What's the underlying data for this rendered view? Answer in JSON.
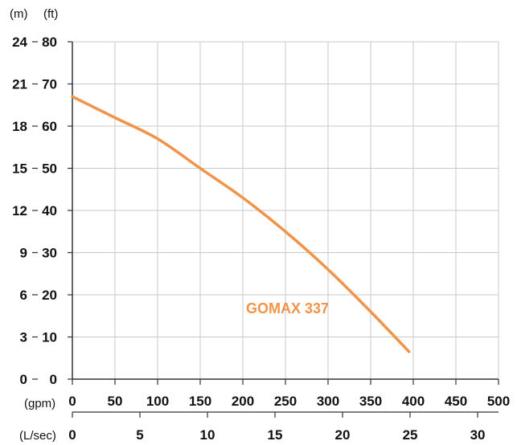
{
  "chart_data": {
    "type": "line",
    "title": "",
    "grid": true,
    "colors": {
      "curve": "#f0944a",
      "grid": "#c8c8c8",
      "axis": "#333333",
      "text": "#111111"
    },
    "left_axes": {
      "meters": {
        "unit_label": "(m)",
        "ticks": [
          "0",
          "3",
          "6",
          "9",
          "12",
          "15",
          "18",
          "21",
          "24"
        ],
        "range": [
          0,
          24
        ]
      },
      "feet": {
        "unit_label": "(ft)",
        "ticks": [
          "0",
          "10",
          "20",
          "30",
          "40",
          "50",
          "60",
          "70",
          "80"
        ],
        "range": [
          0,
          80
        ]
      }
    },
    "bottom_axes": {
      "gpm": {
        "unit_label": "(gpm)",
        "ticks": [
          "0",
          "50",
          "100",
          "150",
          "200",
          "250",
          "300",
          "350",
          "400",
          "450",
          "500"
        ],
        "range": [
          0,
          500
        ]
      },
      "lsec": {
        "unit_label": "(L/sec)",
        "ticks": [
          "0",
          "5",
          "10",
          "15",
          "20",
          "25",
          "30"
        ]
      }
    },
    "series": [
      {
        "name": "GOMAX 337",
        "x_unit": "gpm",
        "y_unit": "ft",
        "x": [
          0,
          50,
          100,
          150,
          200,
          250,
          300,
          350,
          395
        ],
        "y": [
          67,
          62,
          57,
          50,
          43,
          35,
          26,
          16,
          6.5
        ]
      }
    ]
  }
}
